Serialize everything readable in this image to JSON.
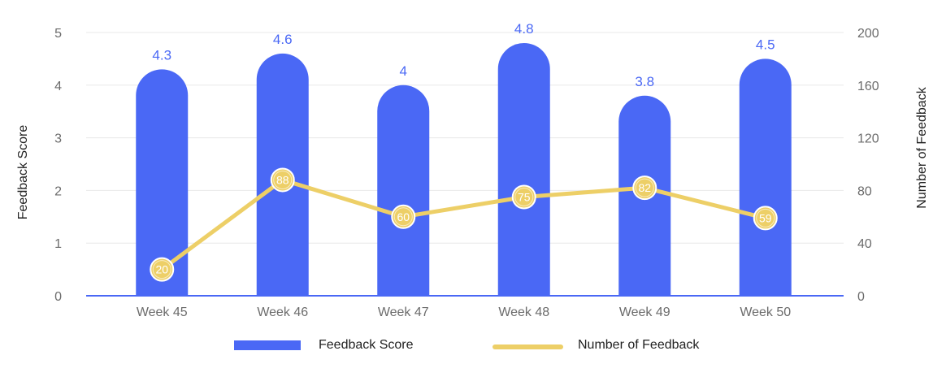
{
  "chart_data": {
    "type": "bar",
    "categories": [
      "Week 45",
      "Week 46",
      "Week 47",
      "Week 48",
      "Week 49",
      "Week 50"
    ],
    "series": [
      {
        "name": "Feedback Score",
        "type": "bar",
        "axis": "left",
        "values": [
          4.3,
          4.6,
          4,
          4.8,
          3.8,
          4.5
        ],
        "color": "#4a68f5"
      },
      {
        "name": "Number of Feedback",
        "type": "line",
        "axis": "right",
        "values": [
          20,
          88,
          60,
          75,
          82,
          59
        ],
        "color": "#edcf67"
      }
    ],
    "y_left": {
      "label": "Feedback Score",
      "ylim": [
        0,
        5
      ],
      "ticks": [
        0,
        1,
        2,
        3,
        4,
        5
      ]
    },
    "y_right": {
      "label": "Number of Feedback",
      "ylim": [
        0,
        200
      ],
      "ticks": [
        0,
        40,
        80,
        120,
        160,
        200
      ]
    },
    "grid": true,
    "legend_position": "bottom-center"
  }
}
